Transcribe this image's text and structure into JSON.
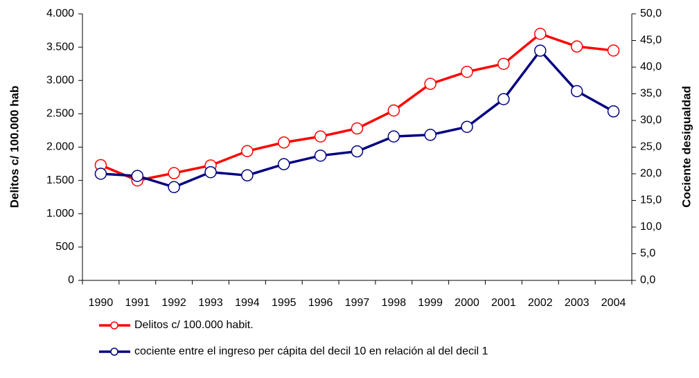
{
  "chart_data": {
    "type": "line",
    "categories": [
      "1990",
      "1991",
      "1992",
      "1993",
      "1994",
      "1995",
      "1996",
      "1997",
      "1998",
      "1999",
      "2000",
      "2001",
      "2002",
      "2003",
      "2004"
    ],
    "y_label": "Delitos c/ 100.000 hab",
    "y2_label": "Cociente desigualdad",
    "ylim": [
      0,
      4000
    ],
    "yticks": [
      0,
      500,
      {
        "value": 1000,
        "label": "1.000"
      },
      {
        "value": 1500,
        "label": "1.500"
      },
      {
        "value": 2000,
        "label": "2.000"
      },
      {
        "value": 2500,
        "label": "2.500"
      },
      {
        "value": 3000,
        "label": "3.000"
      },
      {
        "value": 3500,
        "label": "3.500"
      },
      {
        "value": 4000,
        "label": "4.000"
      }
    ],
    "y2lim": [
      0,
      50
    ],
    "y2ticks": [
      {
        "value": 0,
        "label": "0,0"
      },
      {
        "value": 5,
        "label": "5,0"
      },
      {
        "value": 10,
        "label": "10,0"
      },
      {
        "value": 15,
        "label": "15,0"
      },
      {
        "value": 20,
        "label": "20,0"
      },
      {
        "value": 25,
        "label": "25,0"
      },
      {
        "value": 30,
        "label": "30,0"
      },
      {
        "value": 35,
        "label": "35,0"
      },
      {
        "value": 40,
        "label": "40,0"
      },
      {
        "value": 45,
        "label": "45,0"
      },
      {
        "value": 50,
        "label": "50,0"
      }
    ],
    "legend": "bottom",
    "grid": false,
    "series": [
      {
        "name": "Delitos c/ 100.000 habit.",
        "color": "#ff0000",
        "values": [
          1730,
          1500,
          1610,
          1725,
          1940,
          2070,
          2160,
          2280,
          2550,
          2950,
          3130,
          3250,
          3700,
          3510,
          3450
        ]
      },
      {
        "name": "cociente entre el ingreso per cápita del decil 10 en relación al del decil 1",
        "color": "#000080",
        "axis": "y2",
        "values": [
          20.0,
          19.6,
          17.5,
          20.3,
          19.7,
          21.8,
          23.4,
          24.2,
          27.0,
          27.3,
          28.8,
          34.0,
          43.1,
          35.5,
          31.7
        ]
      }
    ]
  }
}
